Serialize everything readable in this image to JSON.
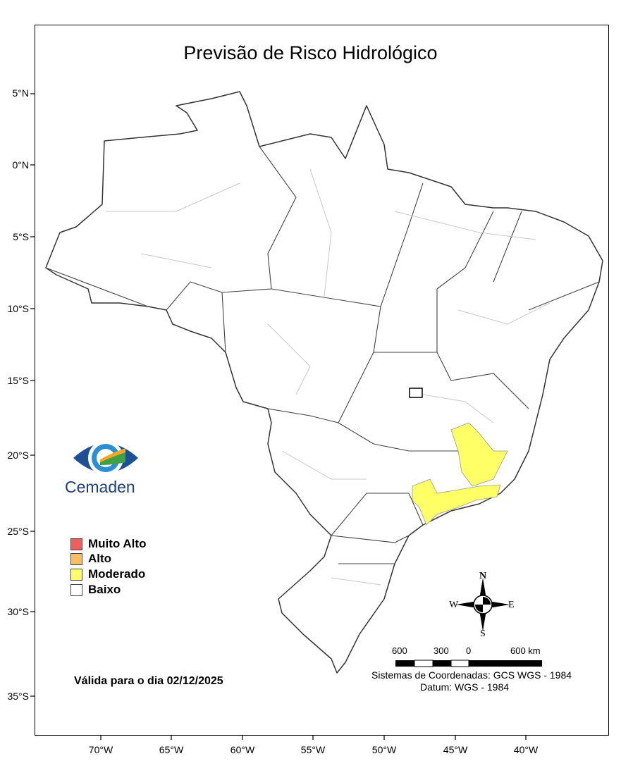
{
  "title": "Previsão de Risco Hidrológico",
  "lat_labels": [
    "5°N",
    "0°N",
    "5°S",
    "10°S",
    "15°S",
    "20°S",
    "25°S",
    "30°S",
    "35°S"
  ],
  "lon_labels": [
    "70°W",
    "65°W",
    "60°W",
    "55°W",
    "50°W",
    "45°W",
    "40°W"
  ],
  "logo": {
    "text": "Cemaden"
  },
  "legend": [
    {
      "label": "Muito Alto",
      "color": "#f45b5b"
    },
    {
      "label": "Alto",
      "color": "#f9bd62"
    },
    {
      "label": "Moderado",
      "color": "#ffff66"
    },
    {
      "label": "Baixo",
      "color": "#ffffff"
    }
  ],
  "valid_text": "Válida para o dia 02/12/2025",
  "compass": {
    "n": "N",
    "s": "S",
    "e": "E",
    "w": "W"
  },
  "scale": {
    "labels": [
      "600",
      "300",
      "0",
      "600 km"
    ]
  },
  "crs": "Sistemas de Coordenadas: GCS WGS - 1984",
  "datum": "Datum: WGS - 1984",
  "highlight_color": "#ffff66"
}
